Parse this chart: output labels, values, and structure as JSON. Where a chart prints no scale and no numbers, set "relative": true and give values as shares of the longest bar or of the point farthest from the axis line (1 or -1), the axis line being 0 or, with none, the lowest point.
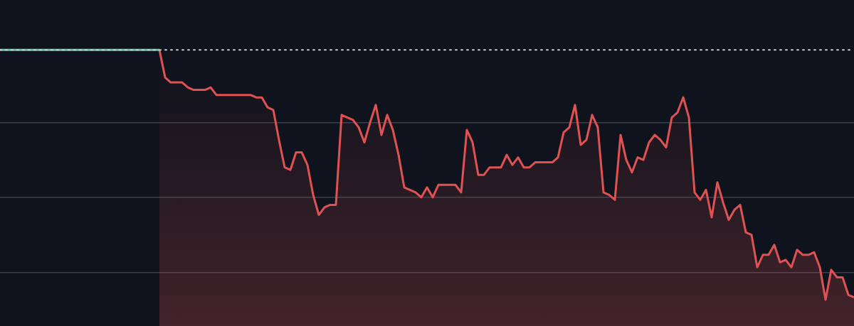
{
  "chart_data": {
    "type": "area",
    "relative": true,
    "grid": "y",
    "legend": false,
    "marker": "none",
    "categories": [
      null,
      null,
      null,
      null,
      null,
      null,
      null,
      null,
      null,
      null,
      null,
      null,
      null,
      null,
      null,
      null,
      null,
      null,
      null,
      null,
      null,
      null,
      null,
      null,
      null,
      null,
      null,
      null,
      null,
      null,
      null,
      null,
      null,
      null,
      null,
      null,
      null,
      null,
      null,
      null,
      null,
      null,
      null,
      null,
      null,
      null,
      null,
      null,
      null,
      null,
      null,
      null,
      null,
      null,
      null,
      null,
      null,
      null,
      null,
      null,
      null,
      null,
      null,
      null,
      null,
      null,
      null,
      null,
      null,
      null,
      null,
      null,
      null,
      null,
      null,
      null,
      null,
      null,
      null,
      null,
      null,
      null,
      null,
      null,
      null,
      null,
      null,
      null,
      null,
      null,
      null,
      null,
      null,
      null,
      null,
      null,
      null,
      null,
      null,
      null,
      null,
      null,
      null,
      null,
      null,
      null,
      null,
      null,
      null,
      null,
      null,
      null,
      null,
      null,
      null,
      null,
      null,
      null,
      null,
      null,
      null,
      null,
      null,
      null,
      null,
      null,
      null,
      null,
      null,
      null,
      null,
      null,
      null,
      null,
      null,
      null,
      null,
      null,
      null,
      null,
      null,
      null,
      null,
      null,
      null,
      null,
      null,
      null,
      null,
      null,
      null
    ],
    "series": [
      {
        "type": "line",
        "color": "#5fd39a",
        "values": [
          1,
          1,
          1,
          1,
          1,
          1,
          1,
          1,
          1,
          1,
          1,
          1,
          1,
          1,
          1,
          1,
          1,
          1,
          1,
          1,
          1,
          1,
          1,
          1,
          1,
          1,
          1,
          1,
          1,
          null,
          null,
          null,
          null,
          null,
          null,
          null,
          null,
          null,
          null,
          null,
          null,
          null,
          null,
          null,
          null,
          null,
          null,
          null,
          null,
          null,
          null,
          null,
          null,
          null,
          null,
          null,
          null,
          null,
          null,
          null,
          null,
          null,
          null,
          null,
          null,
          null,
          null,
          null,
          null,
          null,
          null,
          null,
          null,
          null,
          null,
          null,
          null,
          null,
          null,
          null,
          null,
          null,
          null,
          null,
          null,
          null,
          null,
          null,
          null,
          null,
          null,
          null,
          null,
          null,
          null,
          null,
          null,
          null,
          null,
          null,
          null,
          null,
          null,
          null,
          null,
          null,
          null,
          null,
          null,
          null,
          null,
          null,
          null,
          null,
          null,
          null,
          null,
          null,
          null,
          null,
          null,
          null,
          null,
          null,
          null,
          null,
          null,
          null,
          null,
          null,
          null,
          null,
          null,
          null,
          null,
          null,
          null,
          null,
          null,
          null,
          null,
          null,
          null,
          null,
          null,
          null,
          null,
          null,
          null,
          null,
          null
        ]
      },
      {
        "color": "#e05252",
        "values": [
          null,
          null,
          null,
          null,
          null,
          null,
          null,
          null,
          null,
          null,
          null,
          null,
          null,
          null,
          null,
          null,
          null,
          null,
          null,
          null,
          null,
          null,
          null,
          null,
          null,
          null,
          null,
          null,
          1.0,
          0.89,
          0.87,
          0.87,
          0.87,
          0.85,
          0.84,
          0.84,
          0.84,
          0.85,
          0.82,
          0.82,
          0.82,
          0.82,
          0.82,
          0.82,
          0.82,
          0.81,
          0.81,
          0.77,
          0.76,
          0.64,
          0.53,
          0.52,
          0.59,
          0.59,
          0.54,
          0.42,
          0.34,
          0.37,
          0.38,
          0.38,
          0.74,
          0.73,
          0.72,
          0.69,
          0.63,
          0.71,
          0.78,
          0.66,
          0.74,
          0.68,
          0.58,
          0.45,
          0.44,
          0.43,
          0.41,
          0.45,
          0.41,
          0.46,
          0.46,
          0.46,
          0.46,
          0.43,
          0.68,
          0.63,
          0.5,
          0.5,
          0.53,
          0.53,
          0.53,
          0.58,
          0.54,
          0.57,
          0.53,
          0.53,
          0.55,
          0.55,
          0.55,
          0.55,
          0.57,
          0.67,
          0.69,
          0.78,
          0.62,
          0.64,
          0.74,
          0.69,
          0.43,
          0.42,
          0.4,
          0.66,
          0.56,
          0.51,
          0.57,
          0.56,
          0.63,
          0.66,
          0.64,
          0.61,
          0.73,
          0.75,
          0.81,
          0.73,
          0.43,
          0.4,
          0.44,
          0.33,
          0.47,
          0.39,
          0.32,
          0.36,
          0.38,
          0.27,
          0.26,
          0.13,
          0.18,
          0.18,
          0.22,
          0.15,
          0.16,
          0.13,
          0.2,
          0.18,
          0.18,
          0.19,
          0.13,
          0.0,
          0.12,
          0.09,
          0.09,
          0.02,
          0.01
        ]
      }
    ],
    "ref_lines": [
      {
        "axis": "y",
        "value": 1,
        "color": "#c8ccd4",
        "line_style": "dotted"
      }
    ]
  }
}
